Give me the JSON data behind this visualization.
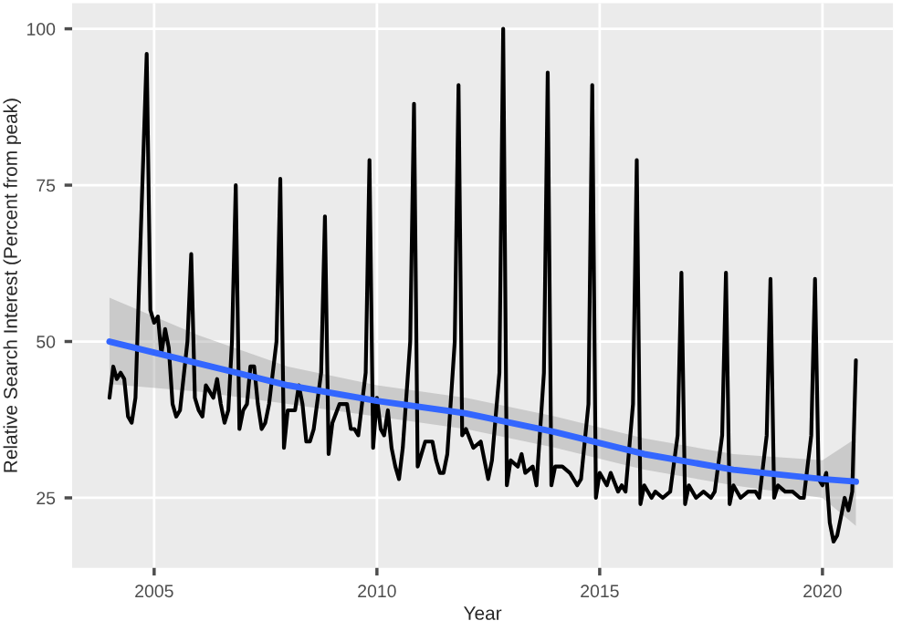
{
  "chart_data": {
    "type": "line",
    "xlabel": "Year",
    "ylabel": "Relative Search Interest (Percent from peak)",
    "x": [
      "2004-01",
      "2004-02",
      "2004-03",
      "2004-04",
      "2004-05",
      "2004-06",
      "2004-07",
      "2004-08",
      "2004-09",
      "2004-11",
      "2004-12",
      "2005-01",
      "2005-02",
      "2005-03",
      "2005-04",
      "2005-05",
      "2005-06",
      "2005-07",
      "2005-08",
      "2005-10",
      "2005-11",
      "2005-12",
      "2006-01",
      "2006-02",
      "2006-03",
      "2006-04",
      "2006-05",
      "2006-06",
      "2006-07",
      "2006-08",
      "2006-09",
      "2006-10",
      "2006-11",
      "2006-12",
      "2007-01",
      "2007-02",
      "2007-03",
      "2007-04",
      "2007-05",
      "2007-06",
      "2007-07",
      "2007-08",
      "2007-10",
      "2007-11",
      "2007-12",
      "2008-01",
      "2008-03",
      "2008-04",
      "2008-05",
      "2008-06",
      "2008-07",
      "2008-08",
      "2008-10",
      "2008-11",
      "2008-12",
      "2009-01",
      "2009-03",
      "2009-04",
      "2009-05",
      "2009-06",
      "2009-07",
      "2009-08",
      "2009-10",
      "2009-11",
      "2009-12",
      "2010-01",
      "2010-02",
      "2010-03",
      "2010-04",
      "2010-05",
      "2010-06",
      "2010-07",
      "2010-08",
      "2010-10",
      "2010-11",
      "2010-12",
      "2011-01",
      "2011-02",
      "2011-03",
      "2011-04",
      "2011-05",
      "2011-06",
      "2011-07",
      "2011-08",
      "2011-10",
      "2011-11",
      "2011-12",
      "2012-01",
      "2012-03",
      "2012-05",
      "2012-07",
      "2012-08",
      "2012-10",
      "2012-11",
      "2012-12",
      "2013-01",
      "2013-03",
      "2013-04",
      "2013-05",
      "2013-07",
      "2013-08",
      "2013-10",
      "2013-11",
      "2013-12",
      "2014-01",
      "2014-03",
      "2014-05",
      "2014-07",
      "2014-08",
      "2014-10",
      "2014-11",
      "2014-12",
      "2015-01",
      "2015-03",
      "2015-04",
      "2015-06",
      "2015-07",
      "2015-08",
      "2015-10",
      "2015-11",
      "2015-12",
      "2016-01",
      "2016-03",
      "2016-04",
      "2016-06",
      "2016-08",
      "2016-10",
      "2016-11",
      "2016-12",
      "2017-01",
      "2017-03",
      "2017-05",
      "2017-07",
      "2017-08",
      "2017-10",
      "2017-11",
      "2017-12",
      "2018-01",
      "2018-03",
      "2018-05",
      "2018-07",
      "2018-08",
      "2018-10",
      "2018-11",
      "2018-12",
      "2019-01",
      "2019-03",
      "2019-05",
      "2019-07",
      "2019-08",
      "2019-10",
      "2019-11",
      "2019-12",
      "2020-01",
      "2020-02",
      "2020-03",
      "2020-04",
      "2020-05",
      "2020-06",
      "2020-07",
      "2020-08",
      "2020-09",
      "2020-10"
    ],
    "series": [
      {
        "color": "#000000",
        "values": [
          41,
          46,
          44,
          45,
          44,
          38,
          37,
          41,
          60,
          96,
          55,
          53,
          54,
          48,
          52,
          49,
          40,
          38,
          39,
          50,
          64,
          41,
          39,
          38,
          43,
          42,
          41,
          44,
          40,
          37,
          39,
          50,
          75,
          36,
          39,
          40,
          46,
          46,
          40,
          36,
          37,
          40,
          50,
          76,
          33,
          39,
          39,
          43,
          40,
          34,
          34,
          36,
          45,
          70,
          32,
          37,
          40,
          40,
          40,
          36,
          36,
          35,
          45,
          79,
          33,
          41,
          36,
          35,
          39,
          33,
          30,
          28,
          33,
          50,
          88,
          30,
          32,
          34,
          34,
          34,
          31,
          29,
          29,
          32,
          50,
          91,
          35,
          36,
          33,
          34,
          28,
          31,
          45,
          100,
          27,
          31,
          30,
          32,
          29,
          30,
          27,
          45,
          93,
          27,
          30,
          30,
          29,
          27,
          28,
          40,
          91,
          25,
          29,
          27,
          29,
          26,
          27,
          26,
          40,
          79,
          24,
          27,
          25,
          26,
          25,
          26,
          35,
          61,
          24,
          27,
          25,
          26,
          25,
          26,
          35,
          61,
          24,
          27,
          25,
          26,
          26,
          25,
          35,
          60,
          25,
          27,
          26,
          26,
          25,
          25,
          35,
          60,
          28,
          27,
          29,
          21,
          18,
          19,
          22,
          25,
          23,
          26,
          47
        ]
      },
      {
        "color": "#3366ff",
        "x": [
          "2004-01",
          "2006-01",
          "2008-01",
          "2010-01",
          "2012-01",
          "2014-01",
          "2016-01",
          "2018-01",
          "2020-01",
          "2020-10"
        ],
        "values": [
          50,
          46.5,
          43,
          40.5,
          38.5,
          35.5,
          32,
          29.5,
          28,
          27.6
        ],
        "lower": [
          43.2,
          42,
          40,
          38,
          36,
          33,
          29.5,
          27,
          25,
          20.5
        ],
        "upper": [
          57,
          51,
          46,
          43,
          41,
          38,
          34.5,
          32,
          31,
          34.5
        ]
      }
    ],
    "xlim": [
      "2003-03",
      "2021-08"
    ],
    "xticks": [
      {
        "value": "2005",
        "label": "2005"
      },
      {
        "value": "2010",
        "label": "2010"
      },
      {
        "value": "2015",
        "label": "2015"
      },
      {
        "value": "2020",
        "label": "2020"
      }
    ],
    "ylim": [
      13.8,
      104.1
    ],
    "yticks": [
      25,
      50,
      75,
      100
    ],
    "grid": true,
    "line_style": "solid",
    "marker": "none"
  }
}
